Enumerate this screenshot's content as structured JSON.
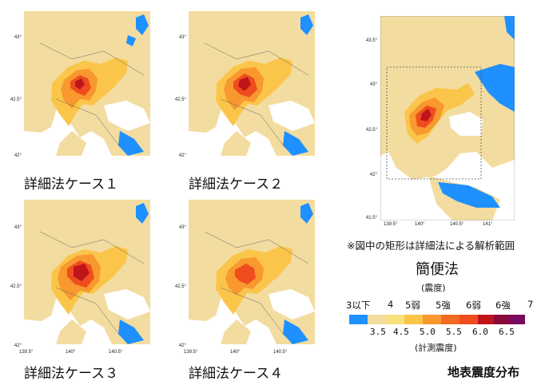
{
  "panels": [
    {
      "caption": "詳細法ケース１",
      "y_ticks": [
        "43°",
        "42.5°",
        "42°"
      ],
      "x_ticks": []
    },
    {
      "caption": "詳細法ケース２",
      "y_ticks": [
        "43°",
        "42.5°",
        "42°"
      ],
      "x_ticks": []
    },
    {
      "caption": "詳細法ケース３",
      "y_ticks": [
        "43°",
        "42.5°",
        "42°"
      ],
      "x_ticks": [
        "139.5°",
        "140°",
        "140.5°"
      ]
    },
    {
      "caption": "詳細法ケース４",
      "y_ticks": [
        "43°",
        "42.5°",
        "42°"
      ],
      "x_ticks": [
        "139.5°",
        "140°",
        "140.5°"
      ]
    }
  ],
  "overview": {
    "y_ticks": [
      "43.5°",
      "43°",
      "42.5°",
      "42°",
      "41.5°"
    ],
    "x_ticks": [
      "139.5°",
      "140°",
      "140.5°",
      "141°"
    ],
    "note": "※図中の矩形は詳細法による解析範囲",
    "title": "簡便法"
  },
  "legend": {
    "intensity_label": "(震度)",
    "levels": [
      "3以下",
      "4",
      "5弱",
      "5強",
      "6弱",
      "6強",
      "7"
    ],
    "values": [
      "3.5",
      "4.5",
      "5.0",
      "5.5",
      "6.0",
      "6.5"
    ],
    "measured_label": "(計測震度)",
    "colors": [
      "#1e90ff",
      "#f3dca0",
      "#fbc54a",
      "#f8982e",
      "#ef4d1d",
      "#c0141b",
      "#8b0a3c",
      "#7a0b5e"
    ]
  },
  "bottom_title": "地表震度分布"
}
